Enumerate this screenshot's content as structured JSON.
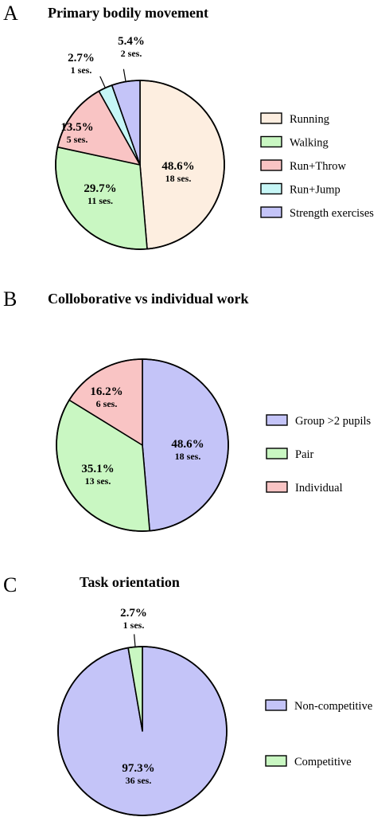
{
  "colors": {
    "running": "#fdeee0",
    "walking": "#c9f7c2",
    "run_throw": "#f9c4c4",
    "run_jump": "#c6f6f6",
    "strength": "#c4c4f8",
    "group": "#c4c4f8",
    "pair": "#c9f7c2",
    "individual": "#f9c4c4",
    "non_competitive": "#c4c4f8",
    "competitive": "#c9f7c2",
    "stroke": "#000000"
  },
  "chart_data": [
    {
      "type": "pie",
      "panel": "A",
      "title": "Primary bodily movement",
      "slices": [
        {
          "label": "Running",
          "value": 48.6,
          "pct_label": "48.6%",
          "ses_label": "18 ses.",
          "color_key": "running"
        },
        {
          "label": "Walking",
          "value": 29.7,
          "pct_label": "29.7%",
          "ses_label": "11 ses.",
          "color_key": "walking"
        },
        {
          "label": "Run+Throw",
          "value": 13.5,
          "pct_label": "13.5%",
          "ses_label": "5 ses.",
          "color_key": "run_throw"
        },
        {
          "label": "Run+Jump",
          "value": 2.7,
          "pct_label": "2.7%",
          "ses_label": "1 ses.",
          "color_key": "run_jump"
        },
        {
          "label": "Strength exercises",
          "value": 5.4,
          "pct_label": "5.4%",
          "ses_label": "2 ses.",
          "color_key": "strength"
        }
      ],
      "legend": [
        "Running",
        "Walking",
        "Run+Throw",
        "Run+Jump",
        "Strength exercises"
      ],
      "legend_position": "right"
    },
    {
      "type": "pie",
      "panel": "B",
      "title": "Colloborative vs individual work",
      "slices": [
        {
          "label": "Group >2 pupils",
          "value": 48.6,
          "pct_label": "48.6%",
          "ses_label": "18 ses.",
          "color_key": "group"
        },
        {
          "label": "Pair",
          "value": 35.1,
          "pct_label": "35.1%",
          "ses_label": "13 ses.",
          "color_key": "pair"
        },
        {
          "label": "Individual",
          "value": 16.2,
          "pct_label": "16.2%",
          "ses_label": "6 ses.",
          "color_key": "individual"
        }
      ],
      "legend": [
        "Group >2 pupils",
        "Pair",
        "Individual"
      ],
      "legend_position": "right"
    },
    {
      "type": "pie",
      "panel": "C",
      "title": "Task orientation",
      "slices": [
        {
          "label": "Non-competitive",
          "value": 97.3,
          "pct_label": "97.3%",
          "ses_label": "36 ses.",
          "color_key": "non_competitive"
        },
        {
          "label": "Competitive",
          "value": 2.7,
          "pct_label": "2.7%",
          "ses_label": "1 ses.",
          "color_key": "competitive"
        }
      ],
      "legend": [
        "Non-competitive",
        "Competitive"
      ],
      "legend_position": "right"
    }
  ]
}
